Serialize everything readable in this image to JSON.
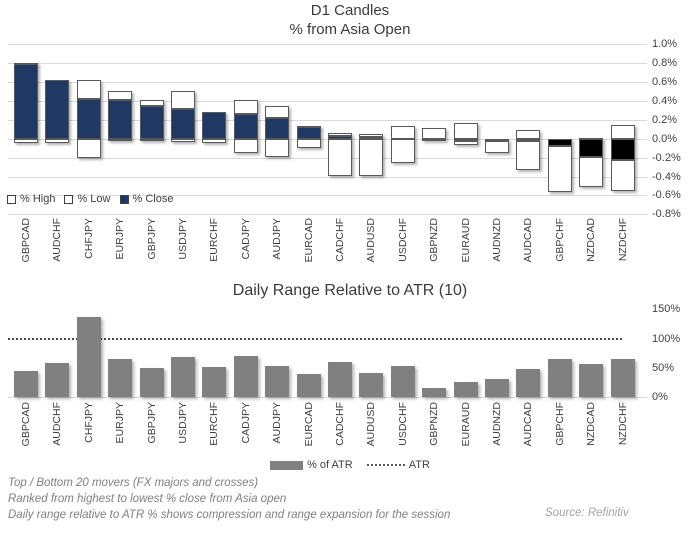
{
  "top_chart": {
    "title_line1": "D1 Candles",
    "title_line2": "% from Asia Open",
    "y_tick_labels": [
      "1.0%",
      "0.8%",
      "0.6%",
      "0.4%",
      "0.2%",
      "0.0%",
      "-0.2%",
      "-0.4%",
      "-0.6%",
      "-0.8%"
    ],
    "legend": [
      {
        "label": "% High",
        "swatch": "#ffffff"
      },
      {
        "label": "% Low",
        "swatch": "#ffffff"
      },
      {
        "label": "% Close",
        "swatch": "#1f3864"
      }
    ]
  },
  "bottom_chart": {
    "title": "Daily Range Relative to ATR (10)",
    "y_tick_labels": [
      "150%",
      "100%",
      "50%",
      "0%"
    ],
    "legend": [
      {
        "label": "% of ATR",
        "style": "solid"
      },
      {
        "label": "ATR",
        "style": "dotted"
      }
    ]
  },
  "footnotes": {
    "line1": "Top / Bottom 20 movers (FX majors and crosses)",
    "line2": "Ranked from highest to lowest % close from Asia open",
    "line3": "Daily range relative to ATR % shows compression and range expansion for the session",
    "source": "Source: Refinitiv"
  },
  "chart_data": [
    {
      "type": "bar",
      "subtype": "floating-range-candles",
      "title": "D1 Candles % from Asia Open",
      "categories": [
        "GBPCAD",
        "AUDCHF",
        "CHFJPY",
        "EURJPY",
        "GBPJPY",
        "USDJPY",
        "EURCHF",
        "CADJPY",
        "AUDJPY",
        "EURCAD",
        "CADCHF",
        "AUDUSD",
        "USDCHF",
        "GBPNZD",
        "EURAUD",
        "AUDNZD",
        "AUDCAD",
        "GBPCHF",
        "NZDCAD",
        "NZDCHF"
      ],
      "series": [
        {
          "name": "% High",
          "values": [
            0.8,
            0.62,
            0.62,
            0.5,
            0.41,
            0.51,
            0.28,
            0.41,
            0.35,
            0.14,
            0.06,
            0.05,
            0.13,
            0.11,
            0.17,
            0.0,
            0.09,
            0.0,
            0.01,
            0.15
          ]
        },
        {
          "name": "% Low",
          "values": [
            -0.05,
            -0.05,
            -0.2,
            -0.01,
            -0.01,
            -0.04,
            -0.05,
            -0.15,
            -0.19,
            -0.1,
            -0.4,
            -0.39,
            -0.26,
            -0.03,
            -0.07,
            -0.15,
            -0.33,
            -0.56,
            -0.51,
            -0.55
          ]
        },
        {
          "name": "% Close",
          "values": [
            0.79,
            0.62,
            0.42,
            0.41,
            0.35,
            0.32,
            0.28,
            0.26,
            0.22,
            0.12,
            0.03,
            0.02,
            0.0,
            0.0,
            -0.02,
            -0.02,
            -0.02,
            -0.08,
            -0.19,
            -0.23
          ]
        }
      ],
      "ylim": [
        -0.8,
        1.0
      ],
      "ytick_step": 0.2,
      "ytick_format": "percent",
      "grid": true,
      "legend_position": "bottom-left"
    },
    {
      "type": "bar",
      "title": "Daily Range Relative to ATR (10)",
      "categories": [
        "GBPCAD",
        "AUDCHF",
        "CHFJPY",
        "EURJPY",
        "GBPJPY",
        "USDJPY",
        "EURCHF",
        "CADJPY",
        "AUDJPY",
        "EURCAD",
        "CADCHF",
        "AUDUSD",
        "USDCHF",
        "GBPNZD",
        "EURAUD",
        "AUDNZD",
        "AUDCAD",
        "GBPCHF",
        "NZDCAD",
        "NZDCHF"
      ],
      "series": [
        {
          "name": "% of ATR",
          "values": [
            45,
            58,
            137,
            66,
            50,
            68,
            52,
            71,
            54,
            40,
            61,
            41,
            54,
            16,
            27,
            31,
            48,
            66,
            56,
            65
          ]
        }
      ],
      "reference_line": {
        "name": "ATR",
        "value": 100,
        "style": "dotted"
      },
      "ylim": [
        0,
        150
      ],
      "yticks": [
        0,
        50,
        100,
        150
      ],
      "grid": false,
      "legend_position": "bottom-center"
    }
  ],
  "colors": {
    "close_positive": "#1f3864",
    "close_negative": "#000000",
    "range_fill": "#ffffff",
    "candle_border": "#595959",
    "grid": "#d9d9d9",
    "bar": "#808080",
    "axis_text": "#404040",
    "title": "#3b3b3b",
    "footnote": "#808080",
    "source": "#a3a3a3"
  }
}
